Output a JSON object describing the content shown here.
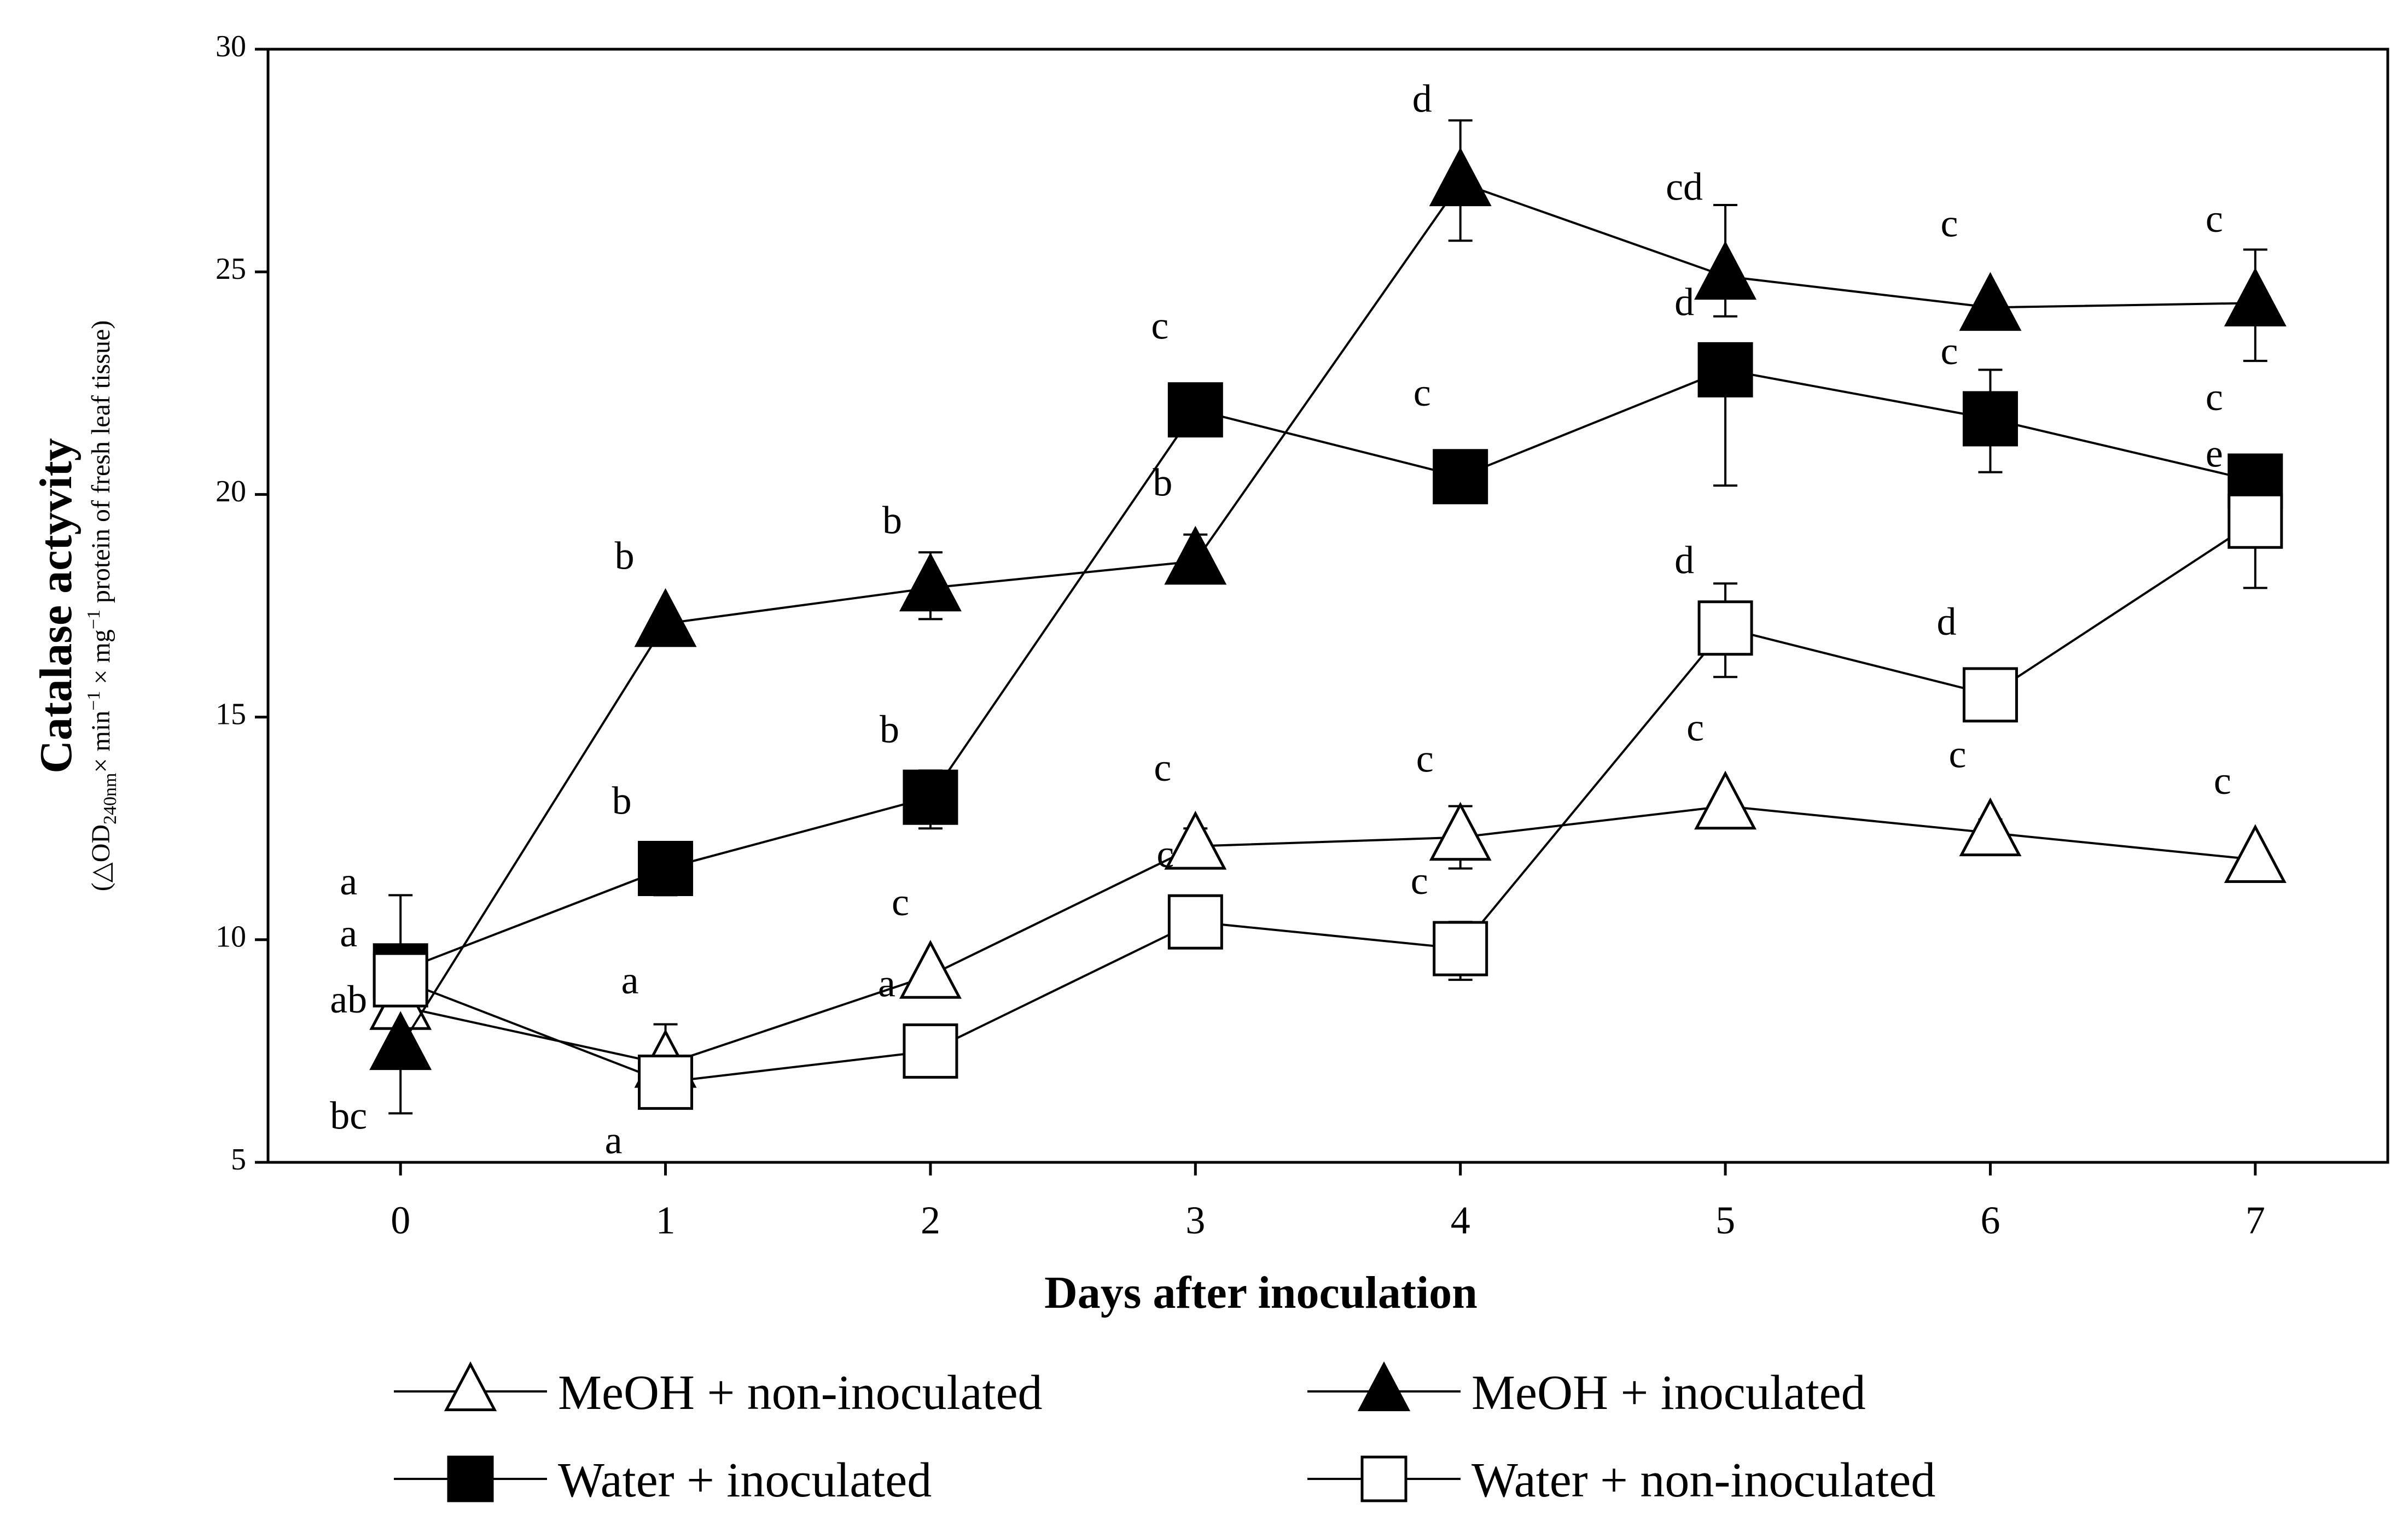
{
  "chart_data": {
    "type": "line",
    "xlabel": "Days after inoculation",
    "ylabel": "Catalase  actyvity",
    "ylabel_sub": {
      "open": "(",
      "delta": "△",
      "od": "OD",
      "od_sub": "240nm",
      "times1": "× min",
      "exp1": "−1",
      "times2": " × mg",
      "exp2": "−1",
      "rest": " protein of fresh leaf tissue)"
    },
    "ylim": [
      5,
      30
    ],
    "yticks": [
      5,
      10,
      15,
      20,
      25,
      30
    ],
    "xlim": [
      -0.5,
      7.5
    ],
    "x": [
      0,
      1,
      2,
      3,
      4,
      5,
      6,
      7
    ],
    "series": [
      {
        "name": "MeOH + non-inoculated",
        "marker": "triangle-open",
        "values": [
          8.5,
          7.2,
          9.2,
          12.1,
          12.3,
          13.0,
          12.4,
          11.8
        ],
        "err_up": [
          0.4,
          0.9,
          0.0,
          0.4,
          0.7,
          0.2,
          0.3,
          0.2
        ],
        "err_down": [
          0.4,
          0.3,
          0.0,
          0.0,
          0.7,
          0.0,
          0.0,
          0.0
        ],
        "letters": [
          "a",
          "a",
          "c",
          "c",
          "c",
          "c",
          "c",
          "c"
        ]
      },
      {
        "name": "MeOH + inoculated",
        "marker": "triangle-filled",
        "values": [
          7.6,
          17.1,
          17.9,
          18.5,
          27.0,
          24.9,
          24.2,
          24.3
        ],
        "err_up": [
          0.0,
          0.0,
          0.8,
          0.6,
          1.4,
          1.6,
          0.0,
          1.2
        ],
        "err_down": [
          1.5,
          0.0,
          0.7,
          0.0,
          1.3,
          0.9,
          0.0,
          1.3
        ],
        "letters": [
          "bc",
          "b",
          "b",
          "b",
          "d",
          "cd",
          "c",
          "c"
        ]
      },
      {
        "name": "Water + inoculated",
        "marker": "square-filled",
        "values": [
          9.3,
          11.6,
          13.2,
          21.9,
          20.4,
          22.8,
          21.7,
          20.3
        ],
        "err_up": [
          1.7,
          0.3,
          0.6,
          0.3,
          0.0,
          0.5,
          1.1,
          0.0
        ],
        "err_down": [
          0.0,
          0.6,
          0.7,
          0.0,
          0.0,
          2.6,
          1.2,
          0.0
        ],
        "letters": [
          "a",
          "b",
          "b",
          "c",
          "c",
          "d",
          "c",
          "c"
        ]
      },
      {
        "name": "Water + non-inoculated",
        "marker": "square-open",
        "values": [
          9.1,
          6.8,
          7.5,
          10.4,
          9.8,
          17.0,
          15.5,
          19.4
        ],
        "err_up": [
          0.0,
          0.0,
          0.0,
          0.0,
          0.6,
          1.0,
          0.0,
          0.0
        ],
        "err_down": [
          0.0,
          0.0,
          0.0,
          0.0,
          0.7,
          1.1,
          0.0,
          1.5
        ],
        "letters": [
          "ab",
          "a",
          "a",
          "c",
          "c",
          "d",
          "d",
          "e"
        ]
      }
    ],
    "legend": {
      "placement": "bottom",
      "columns": 2,
      "order": [
        0,
        1,
        2,
        3
      ]
    }
  }
}
